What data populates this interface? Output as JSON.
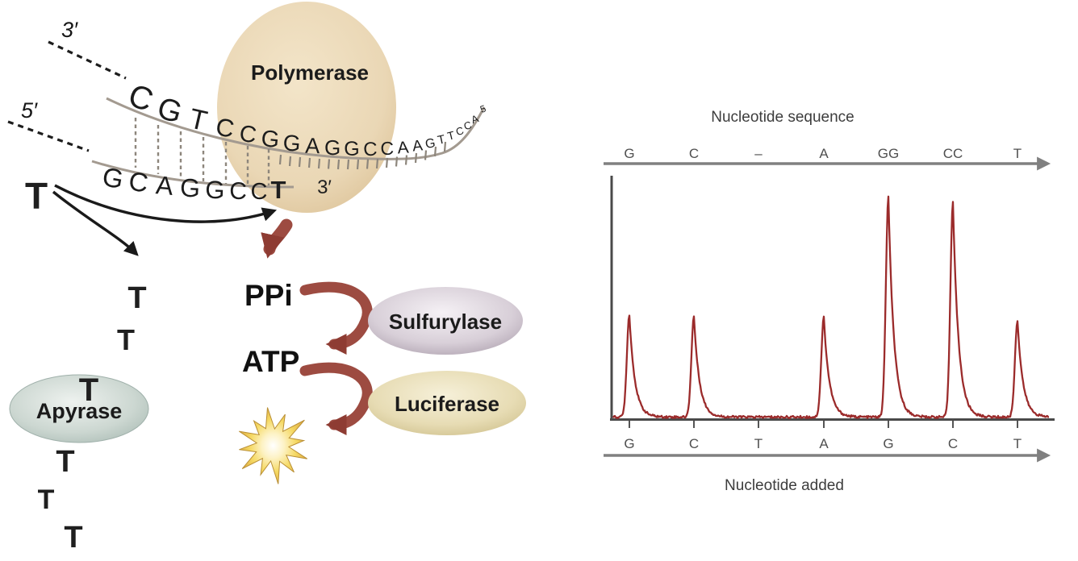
{
  "diagram": {
    "polymerase_label": "Polymerase",
    "apyrase_label": "Apyrase",
    "sulfurylase_label": "Sulfurylase",
    "luciferase_label": "Luciferase",
    "ppi_label": "PPi",
    "atp_label": "ATP",
    "template_start_label": "3′",
    "primer_start_label": "5′",
    "template_strand_sequence": "CGTCCGGAGGCCAAGTTCCA",
    "template_end_label": "5",
    "primer_sequence": "GCAGGCC",
    "incorporated_nucleotide": "T",
    "primer_end_label": "3′",
    "free_nucleotide": "T",
    "released_nucleotides": [
      "T",
      "T"
    ],
    "apyrase_nucleotide": "T",
    "fading_nucleotides": [
      "T",
      "T",
      "T"
    ]
  },
  "chart_data": {
    "type": "line",
    "title": "Nucleotide sequence",
    "xlabel": "Nucleotide added",
    "ylabel": "",
    "sequence_read": [
      "G",
      "C",
      "–",
      "A",
      "GG",
      "CC",
      "T"
    ],
    "nucleotides_added": [
      "G",
      "C",
      "T",
      "A",
      "G",
      "C",
      "T"
    ],
    "values": [
      1,
      1,
      0,
      1,
      2,
      2,
      1
    ],
    "legend": [],
    "grid": false,
    "trace_color": "#9b2b2b",
    "axis_color": "#4a4a4a",
    "arrow_color": "#808080"
  },
  "palette": {
    "polymerase_fill": "#ead7b5",
    "apyrase_fill": "#ccd7d1",
    "sulfurylase_fill": "#d8cfd8",
    "luciferase_fill": "#e7dcb4",
    "red_arrow": "#9d4b41",
    "nucleotide_blue": "#356cab",
    "strand_gray": "#a39a90",
    "light_burst": "#f5d964"
  }
}
